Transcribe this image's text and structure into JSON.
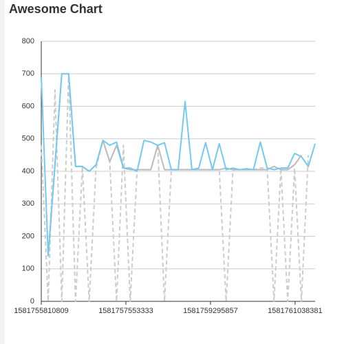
{
  "chart_data": {
    "type": "line",
    "title": "Awesome Chart",
    "x": [
      1581755810809,
      1581755951809,
      1581756092809,
      1581756233809,
      1581756374809,
      1581756515809,
      1581756656809,
      1581756797809,
      1581756938809,
      1581757079809,
      1581757220809,
      1581757361809,
      1581757502809,
      1581757643809,
      1581757784809,
      1581757925809,
      1581758066809,
      1581758207809,
      1581758348809,
      1581758489809,
      1581758630809,
      1581758771809,
      1581758912809,
      1581759053809,
      1581759194809,
      1581759335809,
      1581759476809,
      1581759617809,
      1581759758809,
      1581759899809,
      1581760040809,
      1581760181809,
      1581760322809,
      1581760463809,
      1581760604809,
      1581760745809,
      1581760886809,
      1581761027809,
      1581761168809,
      1581761309809,
      1581761450809
    ],
    "series": [
      {
        "color": "#73c9ef",
        "dashed": false,
        "values": [
          690,
          140,
          420,
          700,
          700,
          415,
          415,
          400,
          420,
          495,
          480,
          490,
          410,
          410,
          400,
          495,
          490,
          480,
          488,
          405,
          405,
          615,
          405,
          410,
          488,
          405,
          485,
          405,
          410,
          405,
          408,
          405,
          490,
          410,
          405,
          410,
          410,
          455,
          445,
          415,
          485
        ]
      },
      {
        "color": "#bbbbbb",
        "dashed": false,
        "values": [
          null,
          140,
          420,
          700,
          700,
          415,
          415,
          400,
          420,
          495,
          430,
          480,
          410,
          405,
          405,
          405,
          405,
          480,
          405,
          405,
          405,
          405,
          405,
          405,
          405,
          405,
          405,
          410,
          405,
          405,
          405,
          405,
          405,
          405,
          415,
          405,
          405,
          420,
          450,
          null,
          null
        ]
      },
      {
        "color": "#cccccc",
        "dashed": true,
        "values": [
          480,
          0,
          650,
          0,
          700,
          0,
          415,
          0,
          410,
          495,
          430,
          0,
          480,
          0,
          405,
          405,
          405,
          480,
          0,
          405,
          405,
          405,
          405,
          405,
          405,
          405,
          405,
          0,
          405,
          405,
          405,
          405,
          410,
          410,
          0,
          410,
          0,
          410,
          0,
          450,
          null
        ]
      }
    ],
    "xlim": [
      1581755810809,
      1581761450809
    ],
    "xticks": [
      1581755810809,
      1581757553333,
      1581759295857,
      1581761038381
    ],
    "ylim": [
      0,
      800
    ],
    "yticks": [
      0,
      100,
      200,
      300,
      400,
      500,
      600,
      700,
      800
    ],
    "grid": true
  }
}
